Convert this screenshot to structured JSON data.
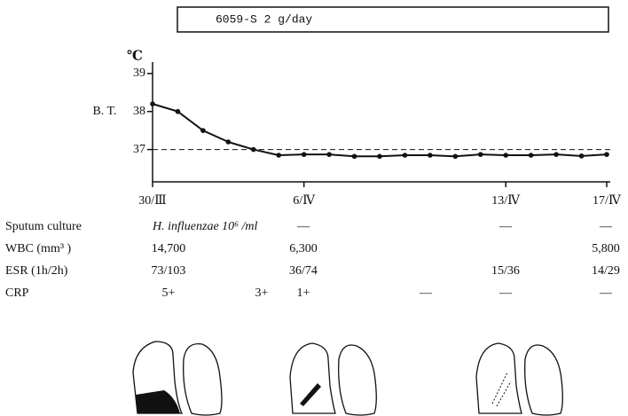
{
  "chart_data": {
    "type": "line",
    "title": "6059-S   2 g/day",
    "y_unit": "℃",
    "ylabel": "B. T.",
    "categories": [
      "30/Ⅲ",
      null,
      null,
      null,
      null,
      null,
      "6/Ⅳ",
      null,
      null,
      null,
      null,
      null,
      null,
      null,
      "13/Ⅳ",
      null,
      null,
      null,
      "17/Ⅳ"
    ],
    "values": [
      38.2,
      38.0,
      37.5,
      37.2,
      37.0,
      36.85,
      36.87,
      36.87,
      36.82,
      36.82,
      36.85,
      36.85,
      36.82,
      36.87,
      36.85,
      36.85,
      36.87,
      36.83,
      36.87
    ],
    "color": "#111111",
    "ylim": [
      36.15,
      39.3
    ],
    "yticks": [
      37,
      38,
      39
    ],
    "reference_line": 37
  },
  "table": {
    "rows": [
      {
        "label": "Sputum culture",
        "cells": [
          "H. influenzae 10⁶ /ml",
          null,
          "—",
          null,
          "—",
          "—"
        ]
      },
      {
        "label": "WBC (mm³ )",
        "cells": [
          "14,700",
          null,
          "6,300",
          null,
          null,
          "5,800"
        ]
      },
      {
        "label": "ESR (1h/2h)",
        "cells": [
          "73/103",
          null,
          "36/74",
          null,
          "15/36",
          "14/29"
        ]
      },
      {
        "label": "CRP",
        "cells": [
          "5+",
          "3+",
          "1+",
          "—",
          "—",
          "—"
        ]
      }
    ]
  }
}
